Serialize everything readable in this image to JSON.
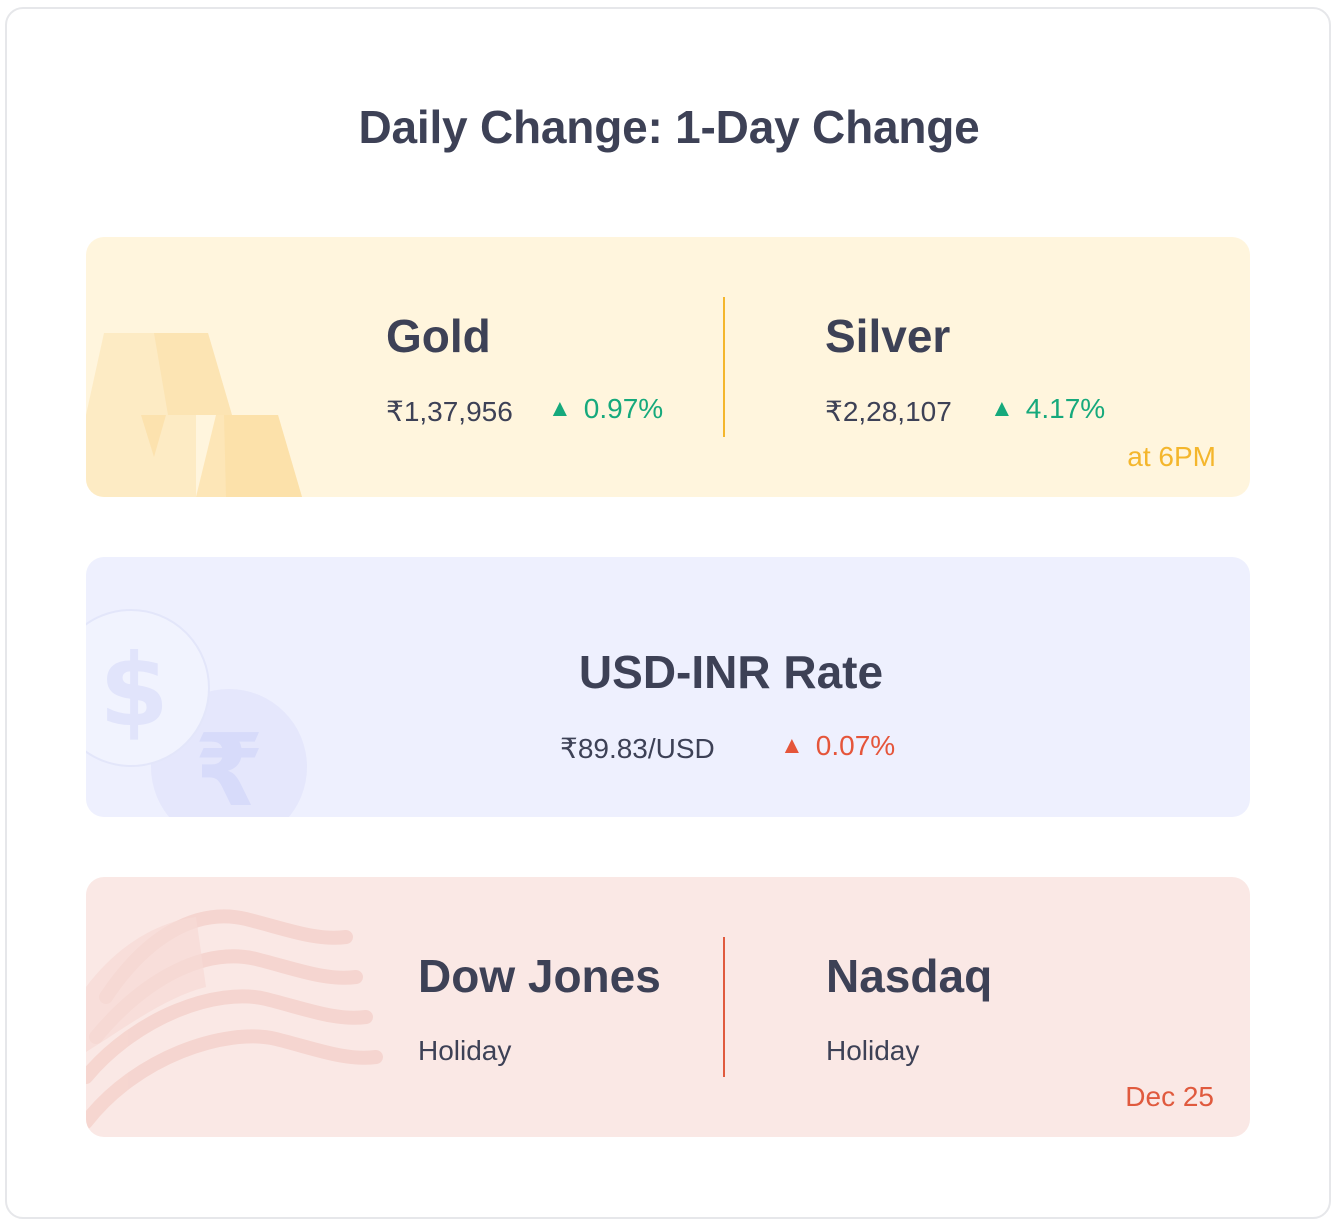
{
  "title": "Daily Change: 1-Day Change",
  "metals": {
    "gold": {
      "name": "Gold",
      "price": "₹1,37,956",
      "change": "0.97%",
      "direction": "up",
      "icon": "triangle-up-icon"
    },
    "silver": {
      "name": "Silver",
      "price": "₹2,28,107",
      "change": "4.17%",
      "direction": "up",
      "icon": "triangle-up-icon"
    },
    "note": "at 6PM",
    "accent": "#f4b62c",
    "background": "#fff5dd",
    "decoration_icon": "gold-bars-icon"
  },
  "forex": {
    "name": "USD-INR Rate",
    "rate": "₹89.83/USD",
    "change": "0.07%",
    "direction": "up",
    "icon": "triangle-up-icon",
    "background": "#eef0fe",
    "decoration_icon": "dollar-rupee-coins-icon"
  },
  "us_markets": {
    "dow": {
      "name": "Dow Jones",
      "status": "Holiday"
    },
    "nasdaq": {
      "name": "Nasdaq",
      "status": "Holiday"
    },
    "note": "Dec 25",
    "accent": "#e05a3e",
    "background": "#fae8e5",
    "decoration_icon": "us-flag-icon"
  },
  "colors": {
    "positive": "#16a97c",
    "negative_up": "#e5553a",
    "text": "#3d4156"
  }
}
